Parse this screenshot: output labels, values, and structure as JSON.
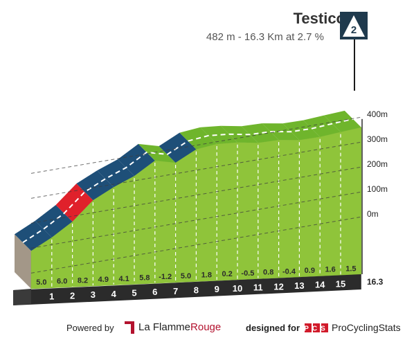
{
  "header": {
    "title": "Testico",
    "subtitle": "482 m - 16.3 Km at 2.7 %",
    "category": "2"
  },
  "footer": {
    "powered_by": "Powered by",
    "lfr_brand_a": "La Flamme",
    "lfr_brand_b": "Rouge",
    "designed_for": "designed for",
    "pcs_logo_text": "PCS",
    "pcs_brand": "ProCyclingStats"
  },
  "chart_data": {
    "type": "area",
    "title": "Testico",
    "subtitle": "482 m - 16.3 Km at 2.7 %",
    "x_unit": "km",
    "altitude_ticks": [
      "400m",
      "300m",
      "200m",
      "100m",
      "0m"
    ],
    "tick_values": [
      400,
      300,
      200,
      100,
      0
    ],
    "total_length_label": "16.3",
    "segments": [
      {
        "km_label": "1",
        "gradient": "5.0",
        "gradient_value": 5.0,
        "alt_start": -70,
        "alt_end": -20,
        "color": "#1e4f78"
      },
      {
        "km_label": "2",
        "gradient": "6.0",
        "gradient_value": 6.0,
        "alt_start": -20,
        "alt_end": 40,
        "color": "#1e4f78"
      },
      {
        "km_label": "3",
        "gradient": "8.2",
        "gradient_value": 8.2,
        "alt_start": 40,
        "alt_end": 122,
        "color": "#e0212b"
      },
      {
        "km_label": "4",
        "gradient": "4.9",
        "gradient_value": 4.9,
        "alt_start": 122,
        "alt_end": 171,
        "color": "#1e4f78"
      },
      {
        "km_label": "5",
        "gradient": "4.1",
        "gradient_value": 4.1,
        "alt_start": 171,
        "alt_end": 212,
        "color": "#1e4f78"
      },
      {
        "km_label": "6",
        "gradient": "5.8",
        "gradient_value": 5.8,
        "alt_start": 212,
        "alt_end": 270,
        "color": "#1e4f78"
      },
      {
        "km_label": "7",
        "gradient": "-1.2",
        "gradient_value": -1.2,
        "alt_start": 270,
        "alt_end": 258,
        "color": "#6fb52c"
      },
      {
        "km_label": "8",
        "gradient": "5.0",
        "gradient_value": 5.0,
        "alt_start": 258,
        "alt_end": 308,
        "color": "#1e4f78"
      },
      {
        "km_label": "9",
        "gradient": "1.8",
        "gradient_value": 1.8,
        "alt_start": 308,
        "alt_end": 326,
        "color": "#6fb52c"
      },
      {
        "km_label": "10",
        "gradient": "0.2",
        "gradient_value": 0.2,
        "alt_start": 326,
        "alt_end": 328,
        "color": "#6fb52c"
      },
      {
        "km_label": "11",
        "gradient": "-0.5",
        "gradient_value": -0.5,
        "alt_start": 328,
        "alt_end": 323,
        "color": "#6fb52c"
      },
      {
        "km_label": "12",
        "gradient": "0.8",
        "gradient_value": 0.8,
        "alt_start": 323,
        "alt_end": 331,
        "color": "#6fb52c"
      },
      {
        "km_label": "13",
        "gradient": "-0.4",
        "gradient_value": -0.4,
        "alt_start": 331,
        "alt_end": 327,
        "color": "#6fb52c"
      },
      {
        "km_label": "14",
        "gradient": "0.9",
        "gradient_value": 0.9,
        "alt_start": 327,
        "alt_end": 336,
        "color": "#6fb52c"
      },
      {
        "km_label": "15",
        "gradient": "1.6",
        "gradient_value": 1.6,
        "alt_start": 336,
        "alt_end": 352,
        "color": "#6fb52c"
      },
      {
        "km_label": "",
        "gradient": "1.5",
        "gradient_value": 1.5,
        "alt_start": 352,
        "alt_end": 367,
        "color": "#6fb52c"
      }
    ],
    "colors": {
      "easy": "#8fc43a",
      "moderate": "#1e4f78",
      "steep": "#e0212b",
      "ground_dark": "#2b2b2b",
      "start_face": "#a39788"
    }
  }
}
